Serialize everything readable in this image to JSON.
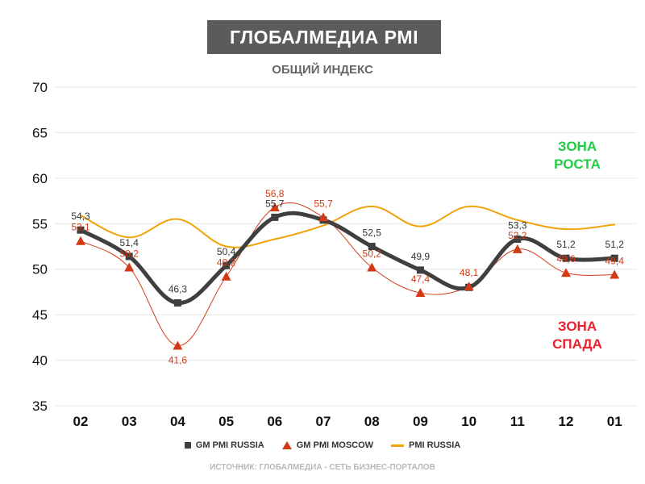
{
  "chart_data": {
    "type": "line",
    "title": "ГЛОБАЛМЕДИА PMI",
    "subtitle": "ОБЩИЙ ИНДЕКС",
    "categories": [
      "02",
      "03",
      "04",
      "05",
      "06",
      "07",
      "08",
      "09",
      "10",
      "11",
      "12",
      "01"
    ],
    "ylim": [
      35,
      70
    ],
    "yticks": [
      35,
      40,
      45,
      50,
      55,
      60,
      65,
      70
    ],
    "grid": true,
    "legend_position": "bottom",
    "series": [
      {
        "name": "GM PMI RUSSIA",
        "color": "#3f3f3f",
        "marker": "square",
        "values": [
          54.3,
          51.4,
          46.3,
          50.4,
          55.7,
          55.4,
          52.5,
          49.9,
          48.0,
          53.3,
          51.2,
          51.2
        ],
        "labels": [
          "54,3",
          "51,4",
          "46,3",
          "50,4",
          "55,7",
          "",
          "52,5",
          "49,9",
          "",
          "53,3",
          "51,2",
          "51,2"
        ]
      },
      {
        "name": "GM PMI MOSCOW",
        "color": "#d23a16",
        "marker": "triangle",
        "values": [
          53.1,
          50.2,
          41.6,
          49.2,
          56.8,
          55.7,
          50.2,
          47.4,
          48.1,
          52.2,
          49.6,
          49.4
        ],
        "labels": [
          "53,1",
          "50,2",
          "41,6",
          "49,2",
          "56,8",
          "55,7",
          "50,2",
          "47,4",
          "48,1",
          "52,2",
          "49,6",
          "49,4"
        ]
      },
      {
        "name": "PMI RUSSIA",
        "color": "#f0a30a",
        "marker": "none",
        "values": [
          55.9,
          53.5,
          55.5,
          52.5,
          53.3,
          54.8,
          56.9,
          54.7,
          56.9,
          55.4,
          54.4,
          54.9
        ]
      }
    ],
    "annotations": [
      {
        "text": "ЗОНА",
        "color": "#22cc44"
      },
      {
        "text": "РОСТА",
        "color": "#22cc44"
      },
      {
        "text": "ЗОНА",
        "color": "#e8222f"
      },
      {
        "text": "СПАДА",
        "color": "#e8222f"
      }
    ]
  },
  "legend": {
    "items": [
      "GM PMI RUSSIA",
      "GM PMI MOSCOW",
      "PMI RUSSIA"
    ]
  },
  "source": "ИСТОЧНИК: ГЛОБАЛМЕДИА - СЕТЬ БИЗНЕС-ПОРТАЛОВ"
}
